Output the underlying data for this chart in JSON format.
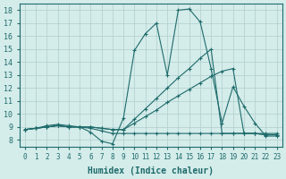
{
  "xlabel": "Humidex (Indice chaleur)",
  "xlim": [
    -0.5,
    23.5
  ],
  "ylim": [
    7.5,
    18.5
  ],
  "xticks": [
    0,
    1,
    2,
    3,
    4,
    5,
    6,
    7,
    8,
    9,
    10,
    11,
    12,
    13,
    14,
    15,
    16,
    17,
    18,
    19,
    20,
    21,
    22,
    23
  ],
  "yticks": [
    8,
    9,
    10,
    11,
    12,
    13,
    14,
    15,
    16,
    17,
    18
  ],
  "bg_color": "#d4ecea",
  "line_color": "#1e6b6b",
  "grid_color": "#b0cfcc",
  "line1_x": [
    0,
    1,
    2,
    3,
    4,
    5,
    6,
    7,
    8,
    9,
    10,
    11,
    12,
    13,
    14,
    15,
    16,
    17,
    18,
    19,
    20,
    21,
    22,
    23
  ],
  "line1_y": [
    8.8,
    8.9,
    9.1,
    9.2,
    9.1,
    9.0,
    8.6,
    7.9,
    7.7,
    9.7,
    14.9,
    16.2,
    17.0,
    13.0,
    18.0,
    18.1,
    17.1,
    13.5,
    9.3,
    12.1,
    10.6,
    9.3,
    8.3,
    8.3
  ],
  "line2_x": [
    0,
    1,
    2,
    3,
    4,
    5,
    6,
    7,
    8,
    9,
    10,
    11,
    12,
    13,
    14,
    15,
    16,
    17,
    18,
    19,
    20,
    21,
    22,
    23
  ],
  "line2_y": [
    8.8,
    8.9,
    9.0,
    9.1,
    9.0,
    9.0,
    9.0,
    8.9,
    8.8,
    8.8,
    9.3,
    9.8,
    10.3,
    10.9,
    11.4,
    11.9,
    12.4,
    12.9,
    13.3,
    13.5,
    8.5,
    8.5,
    8.4,
    8.4
  ],
  "line3_x": [
    0,
    1,
    2,
    3,
    4,
    5,
    6,
    7,
    8,
    9,
    10,
    11,
    12,
    13,
    14,
    15,
    16,
    17,
    18,
    19,
    20,
    21,
    22,
    23
  ],
  "line3_y": [
    8.8,
    8.9,
    9.0,
    9.1,
    9.0,
    9.0,
    9.0,
    8.9,
    8.8,
    8.8,
    9.6,
    10.4,
    11.2,
    12.0,
    12.8,
    13.5,
    14.3,
    15.0,
    8.5,
    8.5,
    8.5,
    8.5,
    8.5,
    8.5
  ],
  "line4_x": [
    0,
    1,
    2,
    3,
    4,
    5,
    6,
    7,
    8,
    9,
    10,
    11,
    12,
    13,
    14,
    15,
    16,
    17,
    18,
    19,
    20,
    21,
    22,
    23
  ],
  "line4_y": [
    8.8,
    8.9,
    9.0,
    9.1,
    9.0,
    9.0,
    8.9,
    8.7,
    8.5,
    8.5,
    8.5,
    8.5,
    8.5,
    8.5,
    8.5,
    8.5,
    8.5,
    8.5,
    8.5,
    8.5,
    8.5,
    8.5,
    8.4,
    8.4
  ]
}
